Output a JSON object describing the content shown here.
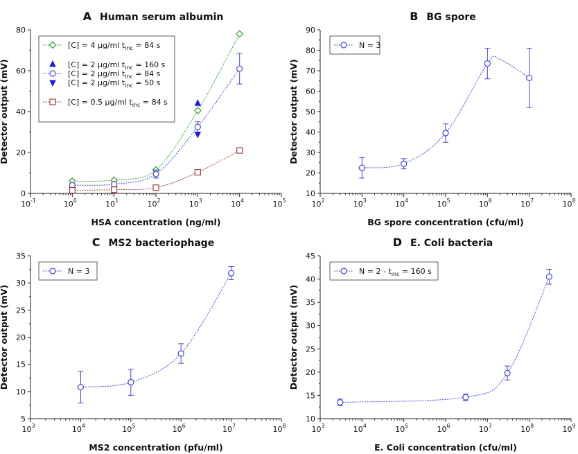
{
  "figure": {
    "panels_order": [
      "A",
      "B",
      "C",
      "D"
    ]
  },
  "chart_data": [
    {
      "type": "line",
      "panel_letter": "A",
      "title": "Human serum albumin",
      "xlabel": "HSA concentration (ng/ml)",
      "ylabel": "Detector output (mV)",
      "x_scale": "log",
      "xlim_exp": [
        -1,
        5
      ],
      "x_tick_exps": [
        -1,
        0,
        1,
        2,
        3,
        4,
        5
      ],
      "ylim": [
        0,
        80
      ],
      "y_ticks": [
        0,
        20,
        40,
        60,
        80
      ],
      "legend_position": "top-left",
      "series": [
        {
          "name": "[C] = 4 µg/ml t",
          "name_sub": "inc",
          "name_tail": " = 84 s",
          "marker": "diamond-open",
          "color": "#2ca02c",
          "x": [
            1,
            10,
            100,
            1000,
            10000
          ],
          "y": [
            6,
            6.5,
            11.5,
            40.5,
            78
          ],
          "err": [
            0,
            0,
            0,
            0,
            0
          ]
        },
        {
          "name": "[C] = 2 µg/ml t",
          "name_sub": "inc",
          "name_tail": " = 160 s",
          "marker": "triangle-up",
          "color": "#1f1fd0",
          "x": [
            1000
          ],
          "y": [
            44
          ],
          "err": [
            0
          ],
          "points_only": true
        },
        {
          "name": "[C] = 2 µg/ml t",
          "name_sub": "inc",
          "name_tail": " = 84 s",
          "marker": "circle-open",
          "color": "#4545d8",
          "x": [
            1,
            10,
            100,
            1000,
            10000
          ],
          "y": [
            4,
            4.5,
            9.5,
            32.5,
            61
          ],
          "err": [
            0.8,
            0.8,
            2,
            2.5,
            7.5
          ]
        },
        {
          "name": "[C] = 2 µg/ml t",
          "name_sub": "inc",
          "name_tail": " = 50 s",
          "marker": "triangle-down",
          "color": "#1f1fd0",
          "x": [
            1000
          ],
          "y": [
            29
          ],
          "err": [
            0
          ],
          "points_only": true
        },
        {
          "name": "[C] = 0.5 µg/ml t",
          "name_sub": "inc",
          "name_tail": " = 84 s",
          "marker": "square-open",
          "color": "#a0403a",
          "x": [
            1,
            10,
            100,
            1000,
            10000
          ],
          "y": [
            1.5,
            1.8,
            2.8,
            10.3,
            21
          ],
          "err": [
            0,
            0,
            0,
            0,
            0
          ]
        }
      ]
    },
    {
      "type": "line",
      "panel_letter": "B",
      "title": "BG spore",
      "xlabel": "BG spore concentration (cfu/ml)",
      "ylabel": "Detector output (mV)",
      "x_scale": "log",
      "xlim_exp": [
        2,
        8
      ],
      "x_tick_exps": [
        2,
        3,
        4,
        5,
        6,
        7,
        8
      ],
      "ylim": [
        10,
        90
      ],
      "y_ticks": [
        10,
        20,
        30,
        40,
        50,
        60,
        70,
        80,
        90
      ],
      "legend_position": "top-left",
      "series": [
        {
          "name": "N = 3",
          "marker": "circle-open",
          "color": "#4545d8",
          "x": [
            1000,
            10000,
            100000,
            1000000,
            10000000
          ],
          "y": [
            22.5,
            24.5,
            39.5,
            73.5,
            66.5
          ],
          "err": [
            5,
            2.5,
            4.5,
            7.5,
            14.5
          ],
          "curve_peak": [
            2000000,
            75.5
          ]
        }
      ]
    },
    {
      "type": "line",
      "panel_letter": "C",
      "title": "MS2 bacteriophage",
      "xlabel": "MS2 concentration (pfu/ml)",
      "ylabel": "Detector output (mV)",
      "x_scale": "log",
      "xlim_exp": [
        3,
        8
      ],
      "x_tick_exps": [
        3,
        4,
        5,
        6,
        7,
        8
      ],
      "ylim": [
        5,
        35
      ],
      "y_ticks": [
        5,
        10,
        15,
        20,
        25,
        30,
        35
      ],
      "legend_position": "top-left",
      "series": [
        {
          "name": "N = 3",
          "marker": "circle-open",
          "color": "#4545d8",
          "x": [
            10000,
            100000,
            1000000,
            10000000
          ],
          "y": [
            10.8,
            11.7,
            17,
            31.8
          ],
          "err": [
            2.9,
            2.4,
            1.8,
            1.2
          ]
        }
      ]
    },
    {
      "type": "line",
      "panel_letter": "D",
      "title": "E. Coli bacteria",
      "xlabel": "E. Coli concentration (cfu/ml)",
      "ylabel": "Detector output (mV)",
      "x_scale": "log",
      "xlim_exp": [
        3,
        9
      ],
      "x_tick_exps": [
        3,
        4,
        5,
        6,
        7,
        8,
        9
      ],
      "ylim": [
        10,
        45
      ],
      "y_ticks": [
        10,
        15,
        20,
        25,
        30,
        35,
        40,
        45
      ],
      "legend_position": "top-left",
      "series": [
        {
          "name": "N = 2 - t",
          "name_sub": "inc",
          "name_tail": " = 160 s",
          "marker": "circle-open",
          "color": "#4545d8",
          "x": [
            3000,
            3000000,
            30000000,
            300000000
          ],
          "y": [
            13.5,
            14.6,
            19.8,
            40.5
          ],
          "err": [
            0.7,
            0.7,
            1.5,
            1.6
          ]
        }
      ]
    }
  ]
}
